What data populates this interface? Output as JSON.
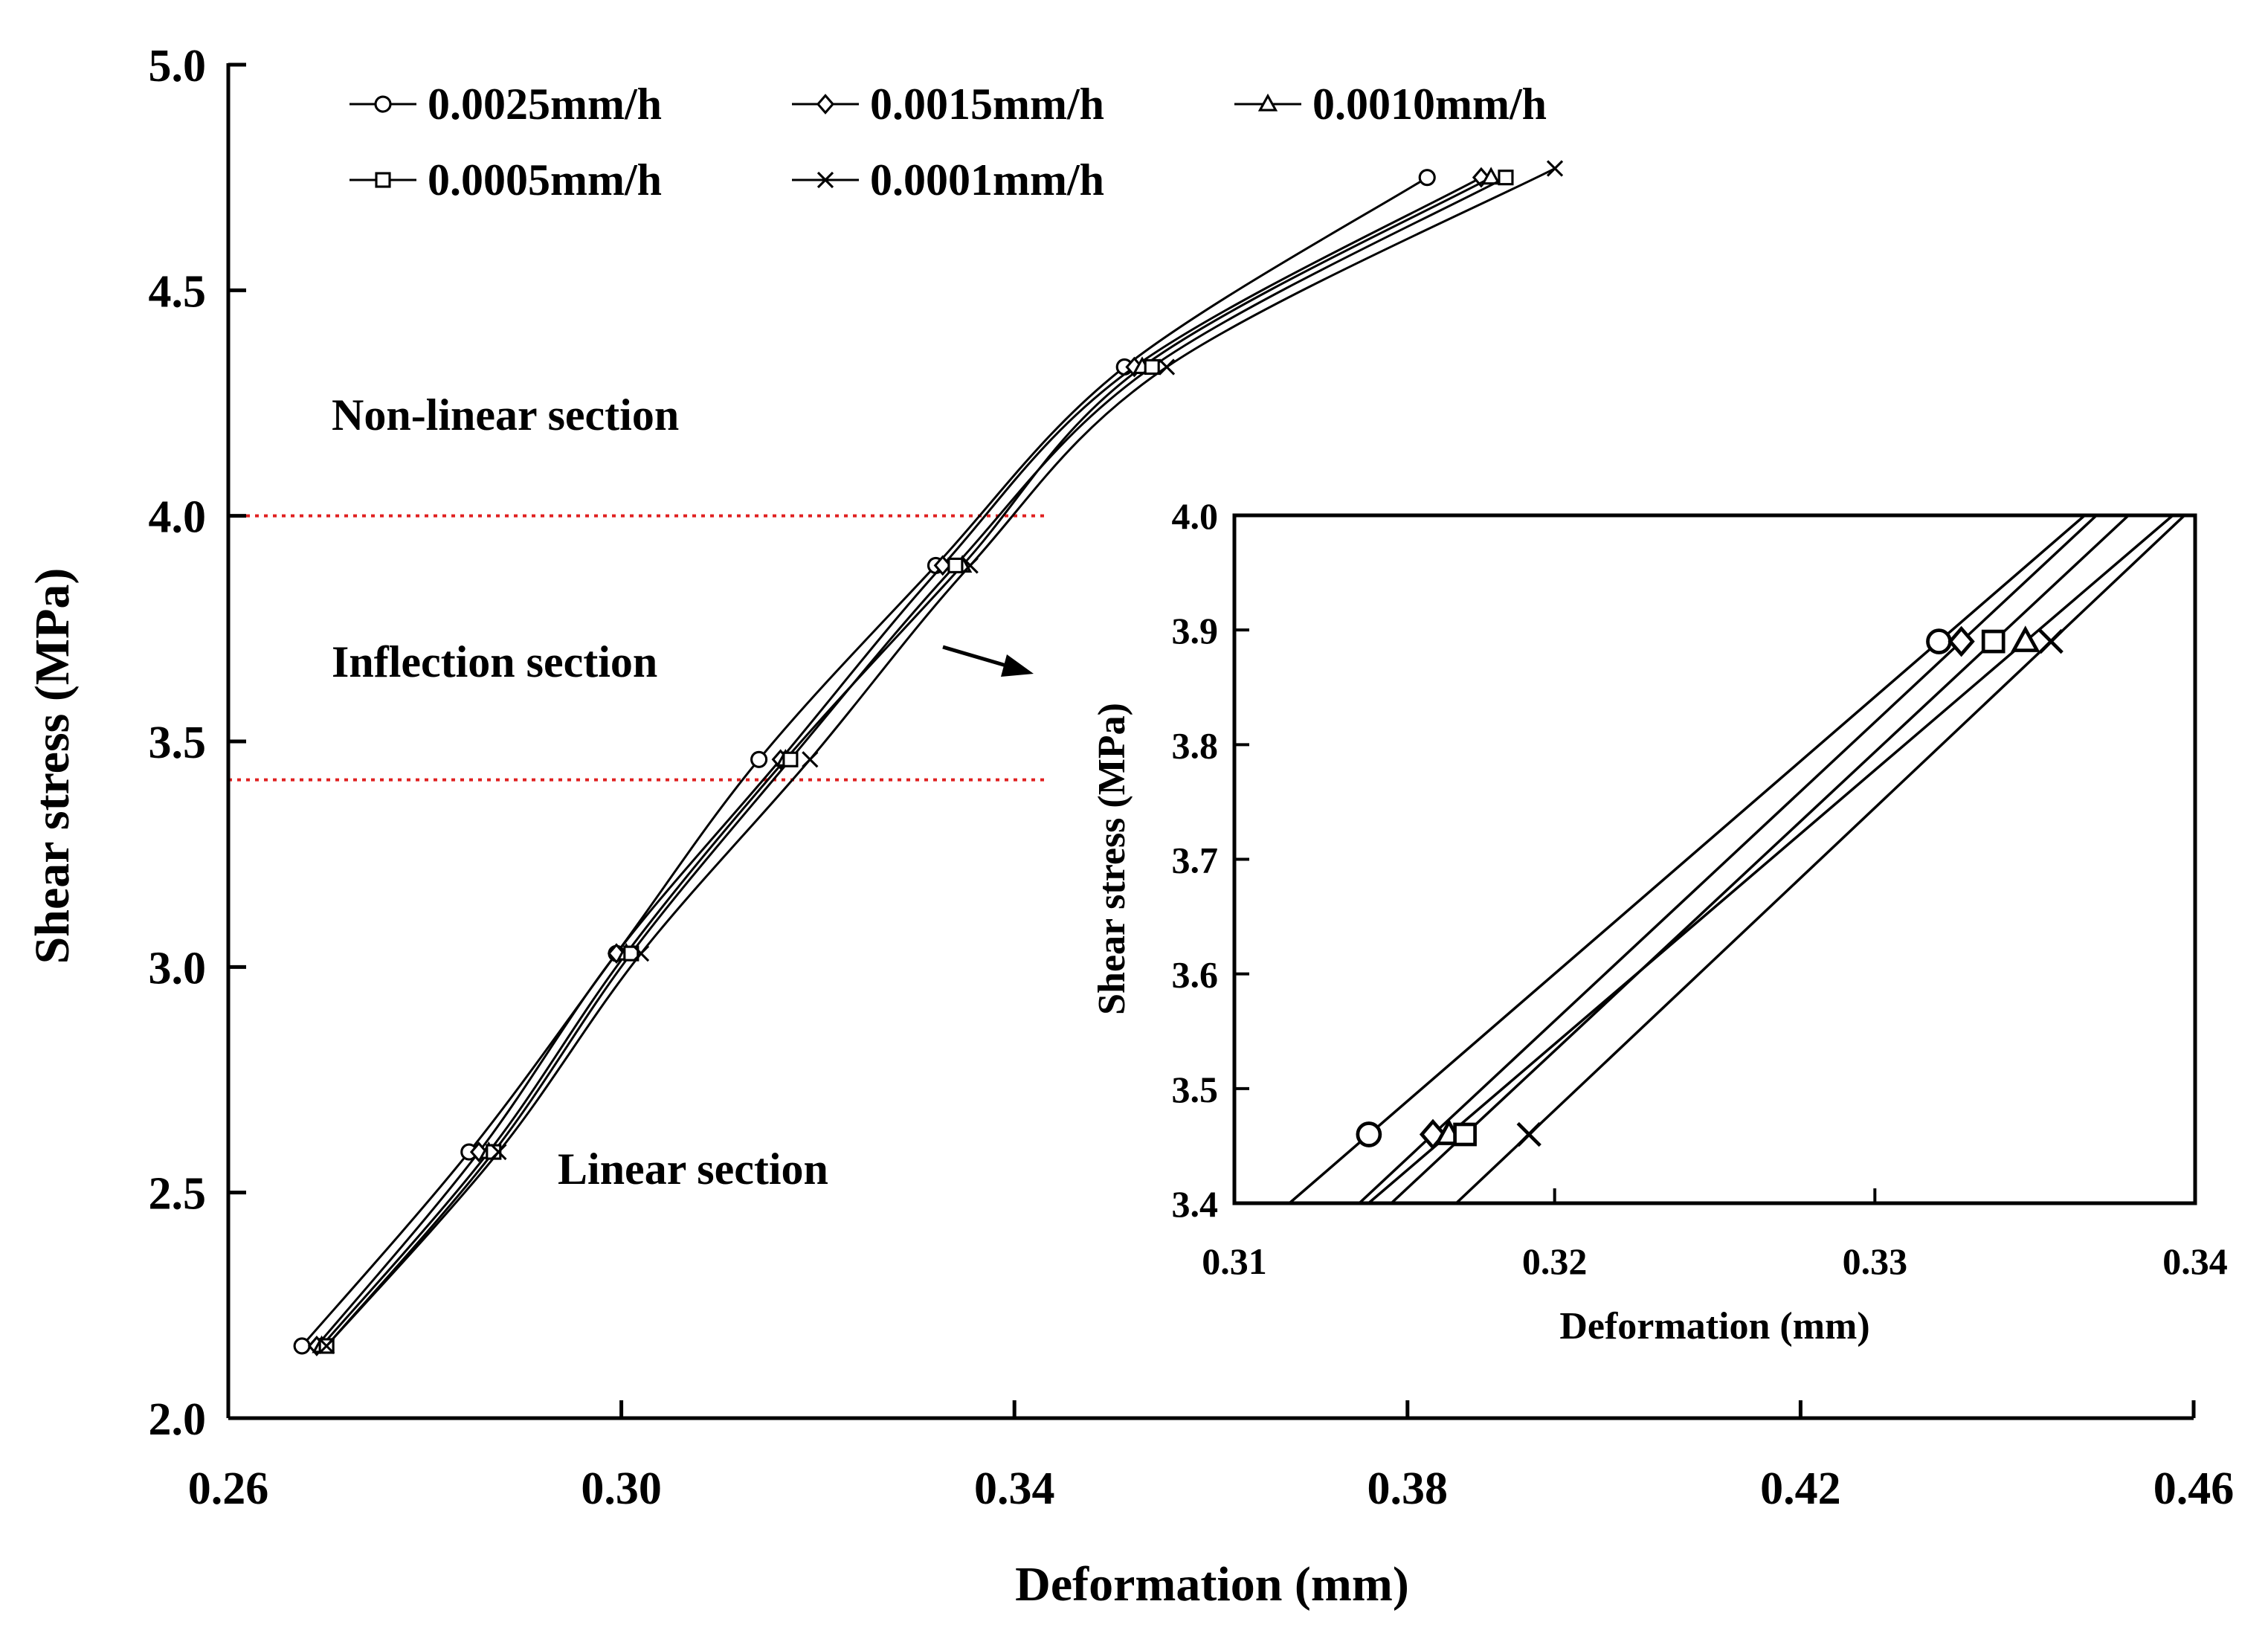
{
  "chart_data": [
    {
      "id": "main",
      "type": "line",
      "title": "",
      "xlabel": "Deformation (mm)",
      "ylabel": "Shear stress (MPa)",
      "xlim": [
        0.26,
        0.46
      ],
      "ylim": [
        2.0,
        5.0
      ],
      "xticks": [
        "0.26",
        "0.30",
        "0.34",
        "0.38",
        "0.42",
        "0.46"
      ],
      "yticks": [
        "2.0",
        "2.5",
        "3.0",
        "3.5",
        "4.0",
        "4.5",
        "5.0"
      ],
      "grid": false,
      "legend_position": "top",
      "series": [
        {
          "name": "0.0025mm/h",
          "marker": "circle",
          "x": [
            0.2675,
            0.2845,
            0.2995,
            0.314,
            0.332,
            0.3512,
            0.382
          ],
          "y": [
            2.16,
            2.59,
            3.03,
            3.46,
            3.89,
            4.33,
            4.75
          ]
        },
        {
          "name": "0.0015mm/h",
          "marker": "diamond",
          "x": [
            0.269,
            0.2855,
            0.2995,
            0.3162,
            0.3327,
            0.3522,
            0.3875
          ],
          "y": [
            2.16,
            2.59,
            3.03,
            3.46,
            3.89,
            4.33,
            4.75
          ]
        },
        {
          "name": "0.0010mm/h",
          "marker": "triangle",
          "x": [
            0.2695,
            0.2865,
            0.3005,
            0.3167,
            0.3347,
            0.353,
            0.3885
          ],
          "y": [
            2.16,
            2.59,
            3.03,
            3.46,
            3.89,
            4.33,
            4.75
          ]
        },
        {
          "name": "0.0005mm/h",
          "marker": "square",
          "x": [
            0.27,
            0.287,
            0.301,
            0.3172,
            0.334,
            0.354,
            0.39
          ],
          "y": [
            2.16,
            2.59,
            3.03,
            3.46,
            3.89,
            4.33,
            4.75
          ]
        },
        {
          "name": "0.0001mm/h",
          "marker": "cross",
          "x": [
            0.27,
            0.2875,
            0.302,
            0.3192,
            0.3355,
            0.3555,
            0.395
          ],
          "y": [
            2.16,
            2.59,
            3.03,
            3.46,
            3.89,
            4.33,
            4.77
          ]
        }
      ],
      "reference_lines": [
        {
          "axis": "y",
          "value": 4.0,
          "color": "#e02020",
          "style": "dotted"
        },
        {
          "axis": "y",
          "value": 3.415,
          "color": "#e02020",
          "style": "dotted"
        }
      ],
      "annotations": [
        {
          "text": "Non-linear section",
          "x": 0.271,
          "y": 4.22
        },
        {
          "text": "Inflection section",
          "x": 0.271,
          "y": 3.68
        },
        {
          "text": "Linear section",
          "x": 0.294,
          "y": 2.52
        }
      ]
    },
    {
      "id": "inset",
      "type": "line",
      "title": "",
      "xlabel": "Deformation (mm)",
      "ylabel": "Shear stress (MPa)",
      "xlim": [
        0.31,
        0.34
      ],
      "ylim": [
        3.4,
        4.0
      ],
      "xticks": [
        "0.31",
        "0.32",
        "0.33",
        "0.34"
      ],
      "yticks": [
        "3.4",
        "3.5",
        "3.6",
        "3.7",
        "3.8",
        "3.9",
        "4.0"
      ],
      "grid": false,
      "series": [
        {
          "name": "0.0025mm/h",
          "marker": "circle",
          "x": [
            0.3142,
            0.332
          ],
          "y": [
            3.46,
            3.89
          ]
        },
        {
          "name": "0.0015mm/h",
          "marker": "diamond",
          "x": [
            0.3162,
            0.3327
          ],
          "y": [
            3.46,
            3.89
          ]
        },
        {
          "name": "0.0010mm/h",
          "marker": "triangle",
          "x": [
            0.3167,
            0.3347
          ],
          "y": [
            3.46,
            3.89
          ]
        },
        {
          "name": "0.0005mm/h",
          "marker": "square",
          "x": [
            0.3172,
            0.3337
          ],
          "y": [
            3.46,
            3.89
          ]
        },
        {
          "name": "0.0001mm/h",
          "marker": "cross",
          "x": [
            0.3192,
            0.3355
          ],
          "y": [
            3.46,
            3.89
          ]
        }
      ]
    }
  ],
  "colors": {
    "line": "#000000",
    "reference": "#e02020",
    "background": "#ffffff"
  }
}
